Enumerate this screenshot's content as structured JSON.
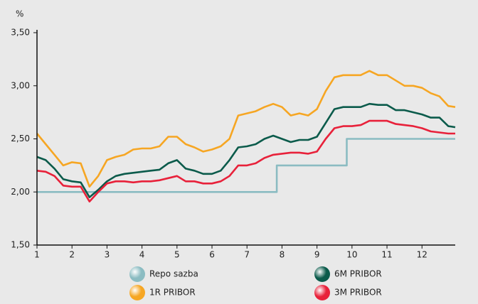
{
  "chart_data": {
    "type": "line",
    "y_unit": "%",
    "x": [
      1,
      1.25,
      1.5,
      1.75,
      2,
      2.25,
      2.5,
      2.75,
      3,
      3.25,
      3.5,
      3.75,
      4,
      4.25,
      4.5,
      4.75,
      5,
      5.25,
      5.5,
      5.75,
      6,
      6.25,
      6.5,
      6.75,
      7,
      7.25,
      7.5,
      7.75,
      8,
      8.25,
      8.5,
      8.75,
      9,
      9.25,
      9.5,
      9.75,
      10,
      10.25,
      10.5,
      10.75,
      11,
      11.25,
      11.5,
      11.75,
      12,
      12.25,
      12.5,
      12.75,
      12.95
    ],
    "series": [
      {
        "name": "Repo sazba",
        "color": "#8bbcc2",
        "x": [
          1,
          7.85,
          7.85,
          9.85,
          9.85,
          12.95
        ],
        "values": [
          2,
          2,
          2.25,
          2.25,
          2.5,
          2.5
        ]
      },
      {
        "name": "1R PRIBOR",
        "color": "#f6a623",
        "values": [
          2.55,
          2.45,
          2.35,
          2.25,
          2.28,
          2.27,
          2.05,
          2.15,
          2.3,
          2.33,
          2.35,
          2.4,
          2.41,
          2.41,
          2.43,
          2.52,
          2.52,
          2.45,
          2.42,
          2.38,
          2.4,
          2.43,
          2.5,
          2.72,
          2.74,
          2.76,
          2.8,
          2.83,
          2.8,
          2.72,
          2.74,
          2.72,
          2.78,
          2.95,
          3.08,
          3.1,
          3.1,
          3.1,
          3.14,
          3.1,
          3.1,
          3.05,
          3.0,
          3.0,
          2.98,
          2.93,
          2.9,
          2.81,
          2.8
        ]
      },
      {
        "name": "6M PRIBOR",
        "color": "#0b5b4b",
        "values": [
          2.33,
          2.3,
          2.22,
          2.12,
          2.1,
          2.09,
          1.95,
          2.02,
          2.1,
          2.15,
          2.17,
          2.18,
          2.19,
          2.2,
          2.21,
          2.27,
          2.3,
          2.22,
          2.2,
          2.17,
          2.17,
          2.2,
          2.3,
          2.42,
          2.43,
          2.45,
          2.5,
          2.53,
          2.5,
          2.47,
          2.49,
          2.49,
          2.52,
          2.65,
          2.78,
          2.8,
          2.8,
          2.8,
          2.83,
          2.82,
          2.82,
          2.77,
          2.77,
          2.75,
          2.73,
          2.7,
          2.7,
          2.62,
          2.61
        ]
      },
      {
        "name": "3M PRIBOR",
        "color": "#e8213a",
        "values": [
          2.2,
          2.19,
          2.15,
          2.06,
          2.05,
          2.05,
          1.91,
          2.0,
          2.08,
          2.1,
          2.1,
          2.09,
          2.1,
          2.1,
          2.11,
          2.13,
          2.15,
          2.1,
          2.1,
          2.08,
          2.08,
          2.1,
          2.15,
          2.25,
          2.25,
          2.27,
          2.32,
          2.35,
          2.36,
          2.37,
          2.37,
          2.36,
          2.38,
          2.5,
          2.6,
          2.62,
          2.62,
          2.63,
          2.67,
          2.67,
          2.67,
          2.64,
          2.63,
          2.62,
          2.6,
          2.57,
          2.56,
          2.55,
          2.55
        ]
      }
    ],
    "xlim": [
      1,
      12.95
    ],
    "xticks": [
      1,
      2,
      3,
      4,
      5,
      6,
      7,
      8,
      9,
      10,
      11,
      12
    ],
    "ylim": [
      1.5,
      3.5
    ],
    "yticks": [
      {
        "value": 1.5,
        "label": "1,50"
      },
      {
        "value": 2,
        "label": "2,00"
      },
      {
        "value": 2.5,
        "label": "2,50"
      },
      {
        "value": 3,
        "label": "3,00"
      },
      {
        "value": 3.5,
        "label": "3,50"
      }
    ],
    "grid": false
  }
}
